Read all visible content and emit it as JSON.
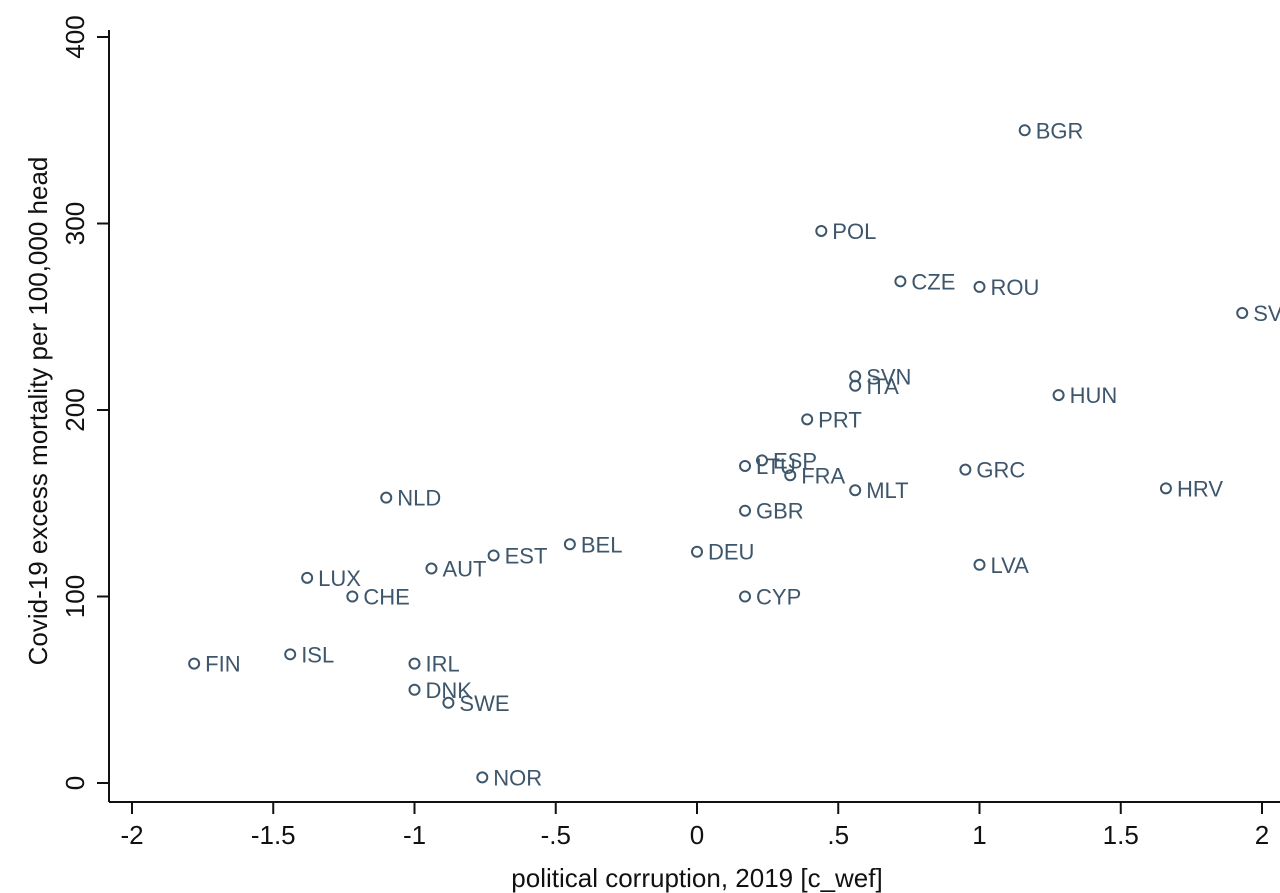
{
  "chart_data": {
    "type": "scatter",
    "title": "",
    "xlabel": "political corruption, 2019 [c_wef]",
    "ylabel": "Covid-19 excess mortality per 100,000 head",
    "xlim": [
      -2.08,
      2.1
    ],
    "ylim": [
      -10,
      405
    ],
    "x_ticks": [
      -2,
      -1.5,
      -1,
      -0.5,
      0,
      0.5,
      1,
      1.5,
      2
    ],
    "x_tick_labels": [
      "-2",
      "-1.5",
      "-1",
      "-.5",
      "0",
      ".5",
      "1",
      "1.5",
      "2"
    ],
    "y_ticks": [
      0,
      100,
      200,
      300,
      400
    ],
    "y_tick_labels": [
      "0",
      "100",
      "200",
      "300",
      "400"
    ],
    "grid": false,
    "legend": "none",
    "marker_color": "#3e566b",
    "points": [
      {
        "label": "BGR",
        "x": 1.16,
        "y": 350
      },
      {
        "label": "POL",
        "x": 0.44,
        "y": 296
      },
      {
        "label": "CZE",
        "x": 0.72,
        "y": 269
      },
      {
        "label": "ROU",
        "x": 1.0,
        "y": 266
      },
      {
        "label": "SV",
        "x": 1.93,
        "y": 252
      },
      {
        "label": "SVN",
        "x": 0.56,
        "y": 218
      },
      {
        "label": "ITA",
        "x": 0.56,
        "y": 213
      },
      {
        "label": "HUN",
        "x": 1.28,
        "y": 208
      },
      {
        "label": "PRT",
        "x": 0.39,
        "y": 195
      },
      {
        "label": "ESP",
        "x": 0.23,
        "y": 173
      },
      {
        "label": "LTU",
        "x": 0.17,
        "y": 170
      },
      {
        "label": "FRA",
        "x": 0.33,
        "y": 165
      },
      {
        "label": "GRC",
        "x": 0.95,
        "y": 168
      },
      {
        "label": "MLT",
        "x": 0.56,
        "y": 157
      },
      {
        "label": "HRV",
        "x": 1.66,
        "y": 158
      },
      {
        "label": "NLD",
        "x": -1.1,
        "y": 153
      },
      {
        "label": "GBR",
        "x": 0.17,
        "y": 146
      },
      {
        "label": "BEL",
        "x": -0.45,
        "y": 128
      },
      {
        "label": "DEU",
        "x": 0.0,
        "y": 124
      },
      {
        "label": "EST",
        "x": -0.72,
        "y": 122
      },
      {
        "label": "AUT",
        "x": -0.94,
        "y": 115
      },
      {
        "label": "LVA",
        "x": 1.0,
        "y": 117
      },
      {
        "label": "LUX",
        "x": -1.38,
        "y": 110
      },
      {
        "label": "CHE",
        "x": -1.22,
        "y": 100
      },
      {
        "label": "CYP",
        "x": 0.17,
        "y": 100
      },
      {
        "label": "ISL",
        "x": -1.44,
        "y": 69
      },
      {
        "label": "FIN",
        "x": -1.78,
        "y": 64
      },
      {
        "label": "IRL",
        "x": -1.0,
        "y": 64
      },
      {
        "label": "DNK",
        "x": -1.0,
        "y": 50
      },
      {
        "label": "SWE",
        "x": -0.88,
        "y": 43
      },
      {
        "label": "NOR",
        "x": -0.76,
        "y": 3
      }
    ]
  }
}
